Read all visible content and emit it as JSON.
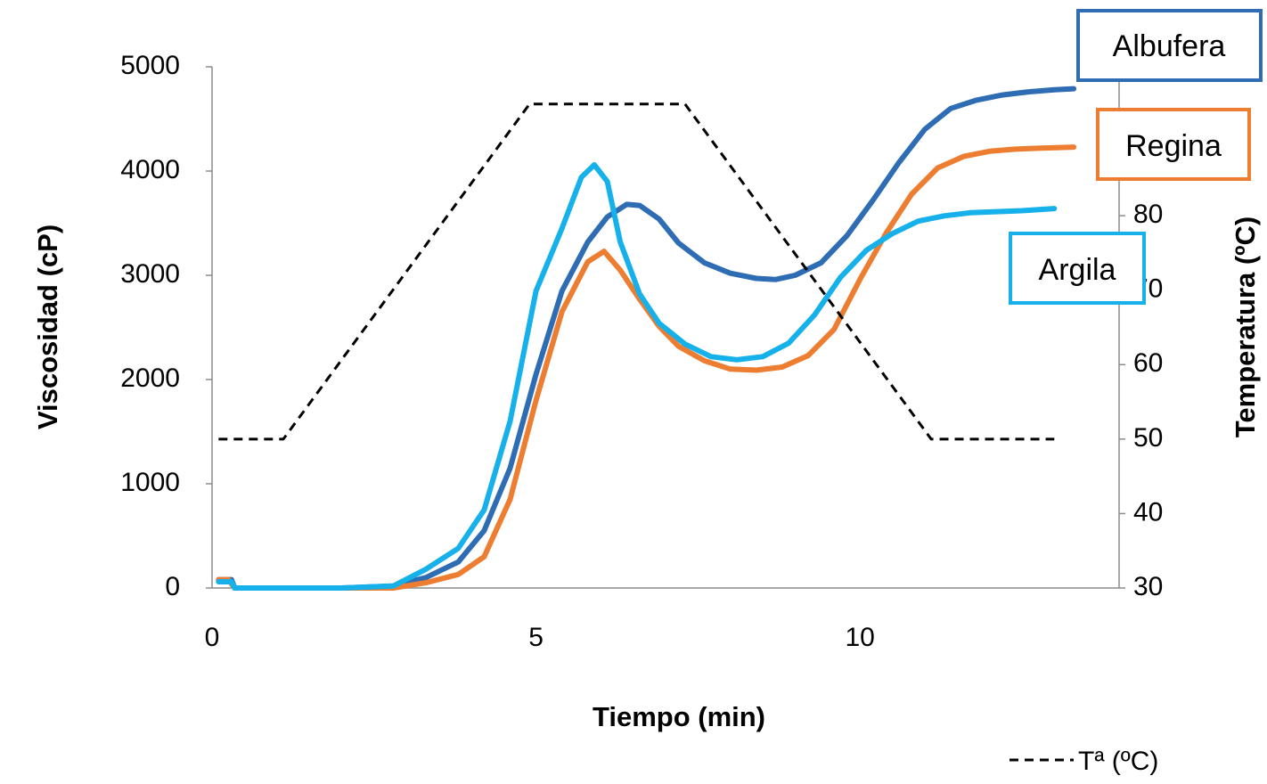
{
  "chart_data": {
    "type": "line",
    "xlabel": "Tiempo (min)",
    "ylabel": "Viscosidad (cP)",
    "y2label": "Temperatura (ºC)",
    "xlim": [
      0,
      14
    ],
    "ylim": [
      0,
      5000
    ],
    "y2lim": [
      30,
      100
    ],
    "xticks": [
      "0",
      "5",
      "10"
    ],
    "yticks": [
      "0",
      "1000",
      "2000",
      "3000",
      "4000",
      "5000"
    ],
    "y2ticks": [
      "30",
      "40",
      "50",
      "60",
      "70",
      "80"
    ],
    "grid": false,
    "series": [
      {
        "name": "Albufera",
        "color": "#2E6DB4",
        "axis": "left",
        "x": [
          0.1,
          0.3,
          0.35,
          0.5,
          1,
          2,
          2.8,
          3.3,
          3.8,
          4.2,
          4.6,
          5.0,
          5.4,
          5.8,
          6.1,
          6.4,
          6.6,
          6.9,
          7.2,
          7.6,
          8.0,
          8.4,
          8.7,
          9.0,
          9.4,
          9.8,
          10.2,
          10.6,
          11.0,
          11.4,
          11.8,
          12.2,
          12.6,
          13.0,
          13.3
        ],
        "values": [
          80,
          80,
          0,
          0,
          0,
          0,
          20,
          100,
          250,
          550,
          1150,
          2050,
          2850,
          3320,
          3560,
          3680,
          3670,
          3540,
          3310,
          3120,
          3020,
          2970,
          2960,
          3000,
          3120,
          3380,
          3720,
          4080,
          4400,
          4600,
          4680,
          4730,
          4760,
          4780,
          4790
        ]
      },
      {
        "name": "Regina",
        "color": "#ED7D31",
        "axis": "left",
        "x": [
          0.1,
          0.25,
          0.35,
          0.5,
          1,
          2,
          2.8,
          3.3,
          3.8,
          4.2,
          4.6,
          5.0,
          5.4,
          5.8,
          6.05,
          6.3,
          6.6,
          6.9,
          7.2,
          7.6,
          8.0,
          8.4,
          8.8,
          9.2,
          9.6,
          10.0,
          10.4,
          10.8,
          11.2,
          11.6,
          12.0,
          12.4,
          12.8,
          13.3
        ],
        "values": [
          80,
          80,
          0,
          0,
          0,
          0,
          0,
          50,
          130,
          300,
          850,
          1800,
          2650,
          3130,
          3230,
          3050,
          2770,
          2510,
          2320,
          2180,
          2100,
          2090,
          2120,
          2230,
          2480,
          2960,
          3400,
          3780,
          4030,
          4140,
          4190,
          4210,
          4220,
          4230
        ]
      },
      {
        "name": "Argila",
        "color": "#16B1EA",
        "axis": "left",
        "x": [
          0.1,
          0.3,
          0.35,
          0.5,
          1,
          2,
          2.8,
          3.3,
          3.8,
          4.2,
          4.6,
          5.0,
          5.4,
          5.7,
          5.9,
          6.1,
          6.3,
          6.6,
          6.9,
          7.3,
          7.7,
          8.1,
          8.5,
          8.9,
          9.3,
          9.7,
          10.1,
          10.5,
          10.9,
          11.3,
          11.7,
          12.1,
          12.5,
          13.0
        ],
        "values": [
          60,
          60,
          0,
          0,
          0,
          0,
          20,
          180,
          380,
          750,
          1600,
          2850,
          3450,
          3940,
          4060,
          3900,
          3320,
          2820,
          2540,
          2340,
          2220,
          2190,
          2220,
          2350,
          2620,
          2980,
          3240,
          3400,
          3520,
          3570,
          3600,
          3610,
          3620,
          3640
        ]
      },
      {
        "name": "Tª (ºC)",
        "color": "#000000",
        "axis": "right",
        "dashed": true,
        "x": [
          0.1,
          1.1,
          4.9,
          7.3,
          11.1,
          13.0
        ],
        "values": [
          50,
          50,
          95,
          95,
          50,
          50
        ]
      }
    ]
  },
  "labels": {
    "albufera": "Albufera",
    "regina": "Regina",
    "argila": "Argila"
  },
  "legend": {
    "temperature": "Tª (ºC)"
  }
}
